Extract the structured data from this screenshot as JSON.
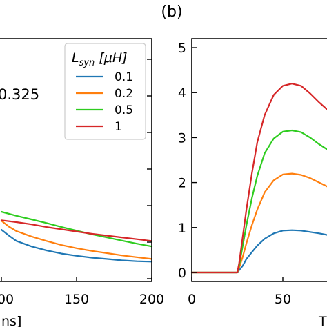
{
  "panel_label": "(b)",
  "left_annotation": "0.325",
  "left_xlabel_fragment": "ns]",
  "right_xlabel_fragment": "T",
  "legend": {
    "title": "L_syn [μH]",
    "title_main": "L",
    "title_sub": "syn",
    "title_units": " [μH]"
  },
  "colors": {
    "0.1": "#1f77b4",
    "0.2": "#ff7f0e",
    "0.5": "#2ecc1f",
    "1": "#d62728"
  },
  "chart_data": [
    {
      "type": "line",
      "panel": "left (partially visible)",
      "xlabel": "",
      "ylabel": "",
      "xticks": [
        "100",
        "150",
        "200"
      ],
      "xlim": [
        100,
        200
      ],
      "grid": false,
      "legend_placement": "top-right",
      "series": [
        {
          "name": "0.1",
          "x": [
            100,
            105,
            110,
            120,
            130,
            140,
            150,
            160,
            170,
            180,
            190,
            200
          ],
          "y": [
            0.95,
            0.82,
            0.7,
            0.58,
            0.49,
            0.42,
            0.37,
            0.33,
            0.3,
            0.27,
            0.25,
            0.24
          ]
        },
        {
          "name": "0.2",
          "x": [
            100,
            105,
            110,
            120,
            130,
            140,
            150,
            160,
            170,
            180,
            190,
            200
          ],
          "y": [
            1.15,
            1.02,
            0.92,
            0.8,
            0.7,
            0.61,
            0.54,
            0.48,
            0.43,
            0.38,
            0.34,
            0.3
          ]
        },
        {
          "name": "0.5",
          "x": [
            100,
            110,
            120,
            130,
            140,
            150,
            160,
            170,
            180,
            190,
            200
          ],
          "y": [
            1.35,
            1.26,
            1.18,
            1.1,
            1.01,
            0.93,
            0.85,
            0.78,
            0.71,
            0.64,
            0.58
          ]
        },
        {
          "name": "1",
          "x": [
            100,
            110,
            120,
            130,
            140,
            150,
            160,
            170,
            180,
            190,
            200
          ],
          "y": [
            1.16,
            1.12,
            1.07,
            1.01,
            0.96,
            0.91,
            0.86,
            0.82,
            0.78,
            0.74,
            0.7
          ]
        }
      ]
    },
    {
      "type": "line",
      "panel": "right (b)",
      "xlabel": "",
      "ylabel": "",
      "xticks": [
        "0",
        "50"
      ],
      "yticks": [
        "0",
        "1",
        "2",
        "3",
        "4",
        "5"
      ],
      "xlim": [
        0,
        75
      ],
      "ylim": [
        -0.2,
        5.2
      ],
      "grid": false,
      "series": [
        {
          "name": "0.1",
          "x": [
            0,
            25,
            26,
            28,
            30,
            33,
            36,
            40,
            45,
            50,
            55,
            60,
            65,
            70,
            75
          ],
          "y": [
            0,
            0,
            0.05,
            0.15,
            0.3,
            0.45,
            0.6,
            0.75,
            0.87,
            0.93,
            0.94,
            0.93,
            0.9,
            0.87,
            0.83
          ]
        },
        {
          "name": "0.2",
          "x": [
            0,
            25,
            26,
            28,
            30,
            33,
            36,
            40,
            45,
            50,
            55,
            60,
            65,
            70,
            75
          ],
          "y": [
            0,
            0,
            0.1,
            0.35,
            0.65,
            1.05,
            1.4,
            1.78,
            2.05,
            2.18,
            2.2,
            2.17,
            2.1,
            2.0,
            1.9
          ]
        },
        {
          "name": "0.5",
          "x": [
            0,
            25,
            26,
            28,
            30,
            33,
            36,
            40,
            45,
            50,
            55,
            60,
            65,
            70,
            75
          ],
          "y": [
            0,
            0,
            0.15,
            0.6,
            1.05,
            1.65,
            2.15,
            2.65,
            2.98,
            3.13,
            3.16,
            3.12,
            3.0,
            2.85,
            2.72
          ]
        },
        {
          "name": "1",
          "x": [
            0,
            25,
            26,
            28,
            30,
            33,
            36,
            40,
            45,
            50,
            55,
            60,
            65,
            70,
            75
          ],
          "y": [
            0,
            0,
            0.2,
            0.8,
            1.4,
            2.2,
            2.9,
            3.5,
            3.95,
            4.15,
            4.2,
            4.15,
            3.98,
            3.78,
            3.6
          ]
        }
      ]
    }
  ]
}
